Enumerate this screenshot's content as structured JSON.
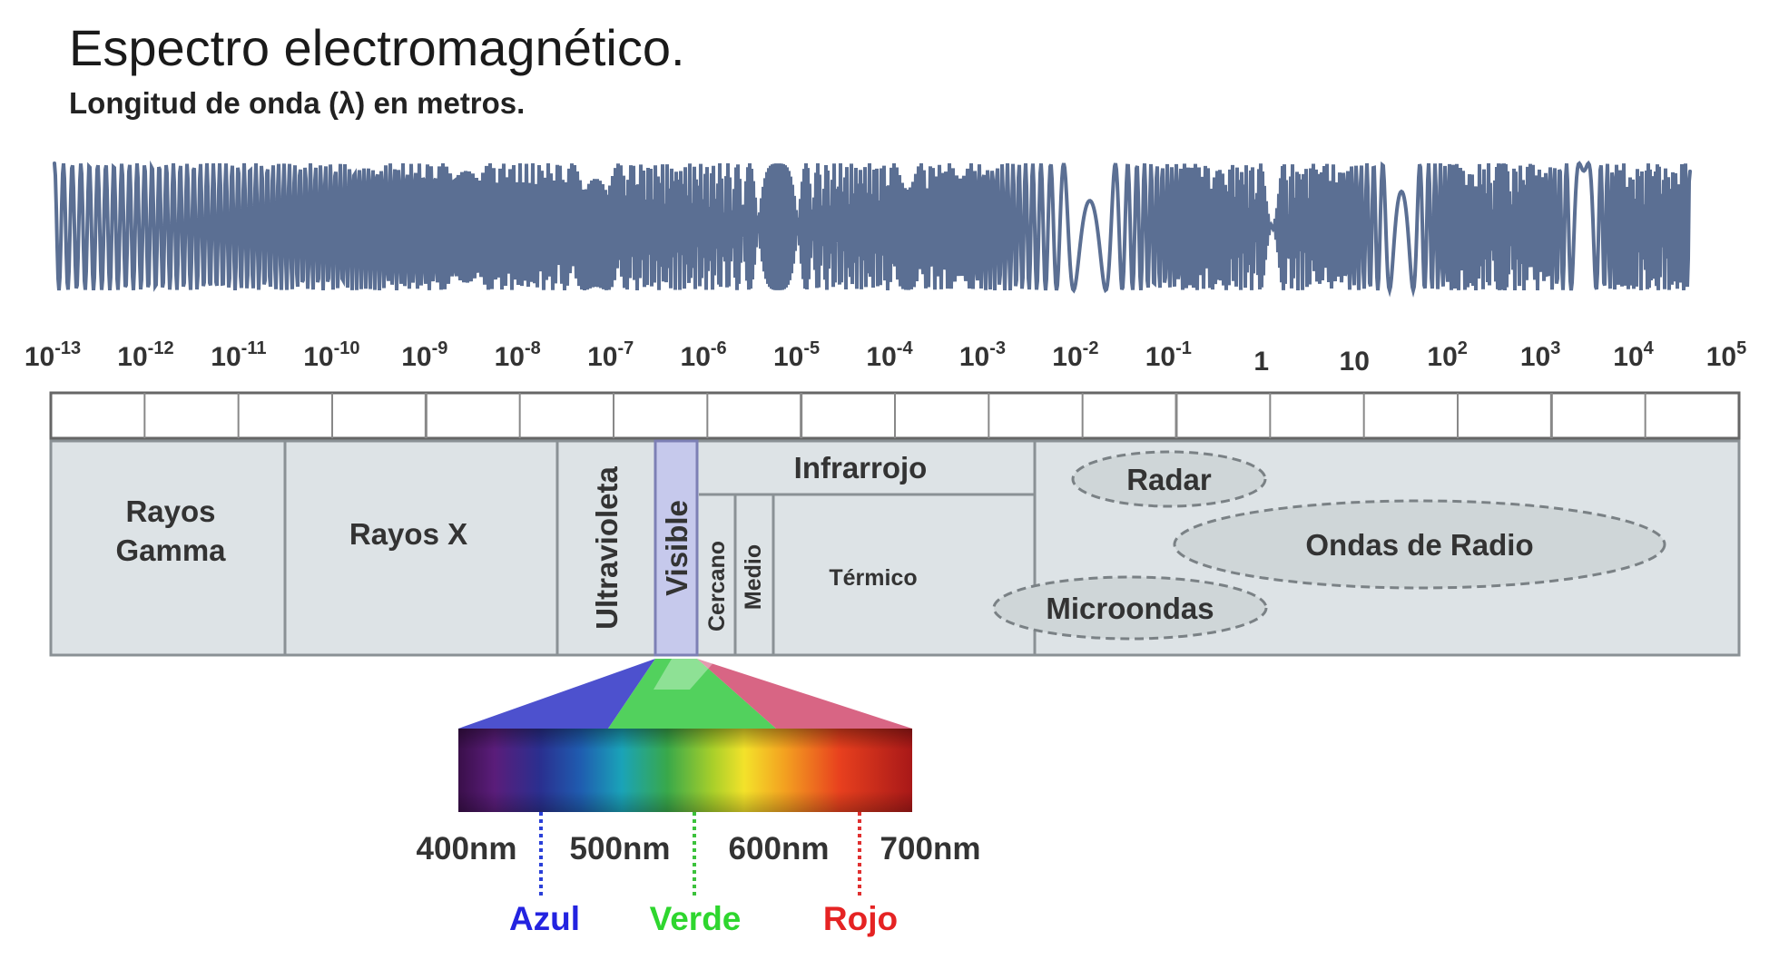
{
  "title": "Espectro electromagnético.",
  "subtitle": "Longitud de onda (λ) en metros.",
  "scale_ticks": [
    {
      "base": "10",
      "exp": "-13"
    },
    {
      "base": "10",
      "exp": "-12"
    },
    {
      "base": "10",
      "exp": "-11"
    },
    {
      "base": "10",
      "exp": "-10"
    },
    {
      "base": "10",
      "exp": "-9"
    },
    {
      "base": "10",
      "exp": "-8"
    },
    {
      "base": "10",
      "exp": "-7"
    },
    {
      "base": "10",
      "exp": "-6"
    },
    {
      "base": "10",
      "exp": "-5"
    },
    {
      "base": "10",
      "exp": "-4"
    },
    {
      "base": "10",
      "exp": "-3"
    },
    {
      "base": "10",
      "exp": "-2"
    },
    {
      "base": "10",
      "exp": "-1"
    },
    {
      "base": "1",
      "exp": ""
    },
    {
      "base": "10",
      "exp": ""
    },
    {
      "base": "10",
      "exp": "2"
    },
    {
      "base": "10",
      "exp": "3"
    },
    {
      "base": "10",
      "exp": "4"
    },
    {
      "base": "10",
      "exp": "5"
    }
  ],
  "regions": {
    "gamma_line1": "Rayos",
    "gamma_line2": "Gamma",
    "xray": "Rayos X",
    "uv": "Ultravioleta",
    "visible": "Visible",
    "infrared": "Infrarrojo",
    "near": "Cercano",
    "mid": "Medio",
    "thermal": "Térmico",
    "radar": "Radar",
    "radio": "Ondas de Radio",
    "microwave": "Microondas"
  },
  "visible_scale": {
    "nm_labels": [
      "400nm",
      "500nm",
      "600nm",
      "700nm"
    ],
    "color_labels": [
      "Azul",
      "Verde",
      "Rojo"
    ]
  },
  "colors": {
    "wave": "#5b6f93",
    "band_fill": "#dde3e6",
    "visible_fill": "#c6c9ec",
    "ellipse_fill": "#cfd6d8",
    "azul": "#2323e0",
    "verde": "#2ed62e",
    "rojo": "#e52323"
  }
}
